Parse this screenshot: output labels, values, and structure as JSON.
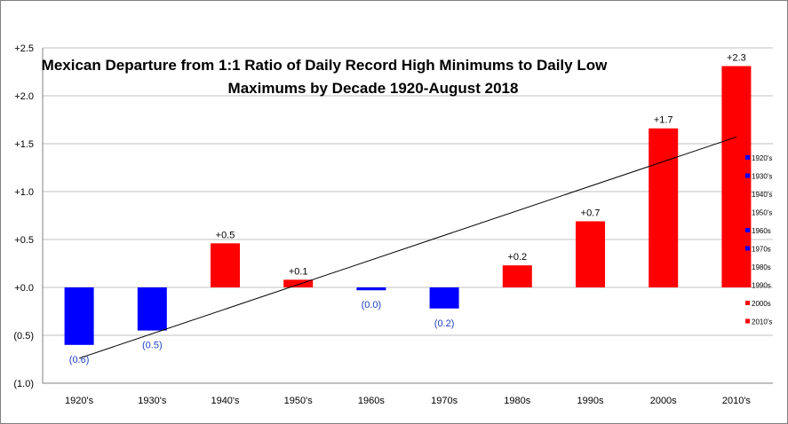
{
  "chart_data": {
    "type": "bar",
    "title_lines": [
      "Mexican Departure from 1:1 Ratio of Daily Record High Minimums to Daily Low",
      "Maximums by Decade 1920-August 2018"
    ],
    "categories": [
      "1920's",
      "1930's",
      "1940's",
      "1950's",
      "1960s",
      "1970s",
      "1980s",
      "1990s",
      "2000s",
      "2010's"
    ],
    "values": [
      -0.6,
      -0.45,
      0.46,
      0.08,
      -0.03,
      -0.22,
      0.23,
      0.69,
      1.66,
      2.31
    ],
    "data_labels": [
      "(0.6)",
      "(0.5)",
      "+0.5",
      "+0.1",
      "(0.0)",
      "(0.2)",
      "+0.2",
      "+0.7",
      "+1.7",
      "+2.3"
    ],
    "y_ticks": [
      "+2.5",
      "+2.0",
      "+1.5",
      "+1.0",
      "+0.5",
      "+0.0",
      "(0.5)",
      "(1.0)"
    ],
    "ylim": [
      -1.0,
      2.5
    ],
    "trendline": {
      "start": -0.74,
      "end": 1.57
    },
    "legend": {
      "placement": "right",
      "entries": [
        "1920's",
        "1930's",
        "1940's",
        "1950's",
        "1960s",
        "1970s",
        "1980s",
        "1990s",
        "2000s",
        "2010's"
      ]
    },
    "colors": {
      "positive": "#ff0000",
      "negative": "#0000ff",
      "positive_label": "#000000",
      "negative_label": "#1f3fbf",
      "grid": "#c0c0c0",
      "trend": "#000000"
    },
    "grid": true
  }
}
